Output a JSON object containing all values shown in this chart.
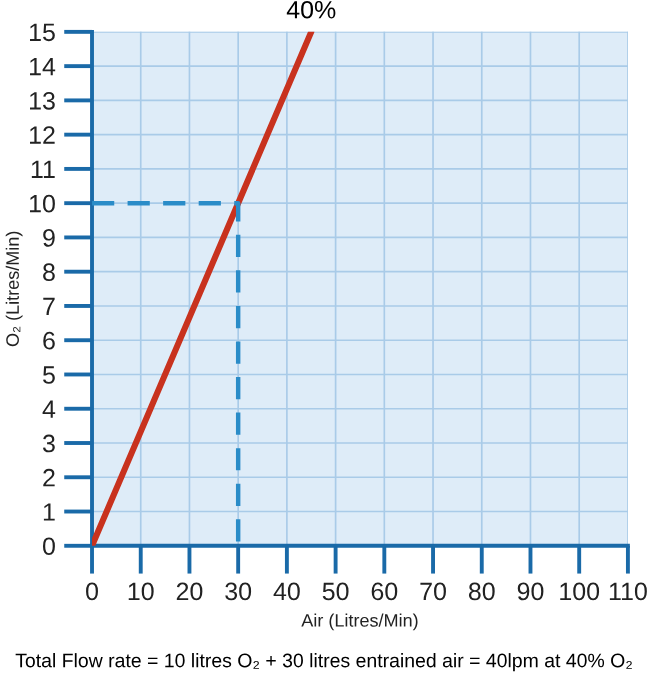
{
  "chart_data": {
    "type": "line",
    "xlabel": "Air (Litres/Min)",
    "ylabel": "O₂ (Litres/Min)",
    "xlim": [
      0,
      110
    ],
    "ylim": [
      0,
      15
    ],
    "xticks": [
      0,
      10,
      20,
      30,
      40,
      50,
      60,
      70,
      80,
      90,
      100,
      110
    ],
    "yticks": [
      0,
      1,
      2,
      3,
      4,
      5,
      6,
      7,
      8,
      9,
      10,
      11,
      12,
      13,
      14,
      15
    ],
    "grid": true,
    "series": [
      {
        "x": [
          0,
          45
        ],
        "values": [
          0,
          15
        ],
        "color": "#c8321e"
      },
      {
        "x": [
          0,
          30,
          30
        ],
        "values": [
          10,
          10,
          0
        ],
        "color": "#2a8cc8",
        "line_style": "dashed"
      }
    ],
    "annotations": [
      {
        "text": "40%",
        "x": 45,
        "y": 15
      },
      "Total Flow rate = 10 litres O₂ + 30 litres entrained air = 40lpm at 40% O₂"
    ]
  }
}
